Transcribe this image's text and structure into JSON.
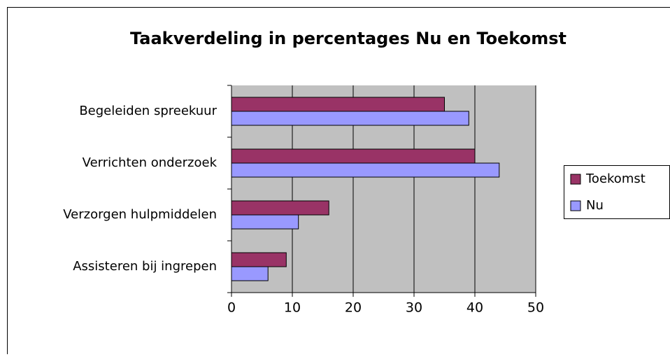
{
  "chart_data": {
    "type": "hbar",
    "title": "Taakverdeling in percentages Nu en Toekomst",
    "categories": [
      "Begeleiden spreekuur",
      "Verrichten onderzoek",
      "Verzorgen hulpmiddelen",
      "Assisteren bij ingrepen"
    ],
    "series": [
      {
        "name": "Toekomst",
        "color": "#993366",
        "values": [
          35,
          40,
          16,
          9
        ]
      },
      {
        "name": "Nu",
        "color": "#9999ff",
        "values": [
          39,
          44,
          11,
          6
        ]
      }
    ],
    "xlim": [
      0,
      50
    ],
    "xticks": [
      0,
      10,
      20,
      30,
      40,
      50
    ],
    "grid": true,
    "legend": "right"
  }
}
